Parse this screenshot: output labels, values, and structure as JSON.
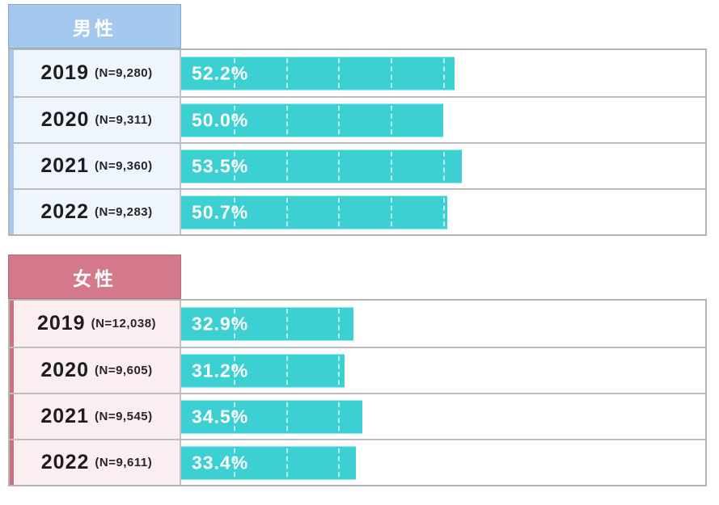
{
  "chart_data": {
    "type": "bar",
    "orientation": "horizontal",
    "value_unit": "%",
    "xlim": [
      0,
      100
    ],
    "gridlines": {
      "interval_percent": 10,
      "style": "white-dashed-vertical"
    },
    "bar_color": "#3cd0d3",
    "categories": [
      "2019",
      "2020",
      "2021",
      "2022"
    ],
    "sections": [
      {
        "label": "男性",
        "colors": {
          "header_bg": "#a4c8ee",
          "accent": "#a4c8ee",
          "row_bg": "#eff5fc"
        },
        "rows": [
          {
            "year": "2019",
            "n_label": "(N=9,280)",
            "value": 52.2,
            "value_display": "52.2%"
          },
          {
            "year": "2020",
            "n_label": "(N=9,311)",
            "value": 50.0,
            "value_display": "50.0%"
          },
          {
            "year": "2021",
            "n_label": "(N=9,360)",
            "value": 53.5,
            "value_display": "53.5%"
          },
          {
            "year": "2022",
            "n_label": "(N=9,283)",
            "value": 50.7,
            "value_display": "50.7%"
          }
        ]
      },
      {
        "label": "女性",
        "colors": {
          "header_bg": "#d4798b",
          "accent": "#ca7184",
          "row_bg": "#fbeef0"
        },
        "rows": [
          {
            "year": "2019",
            "n_label": "(N=12,038)",
            "value": 32.9,
            "value_display": "32.9%"
          },
          {
            "year": "2020",
            "n_label": "(N=9,605)",
            "value": 31.2,
            "value_display": "31.2%"
          },
          {
            "year": "2021",
            "n_label": "(N=9,545)",
            "value": 34.5,
            "value_display": "34.5%"
          },
          {
            "year": "2022",
            "n_label": "(N=9,611)",
            "value": 33.4,
            "value_display": "33.4%"
          }
        ]
      }
    ]
  }
}
